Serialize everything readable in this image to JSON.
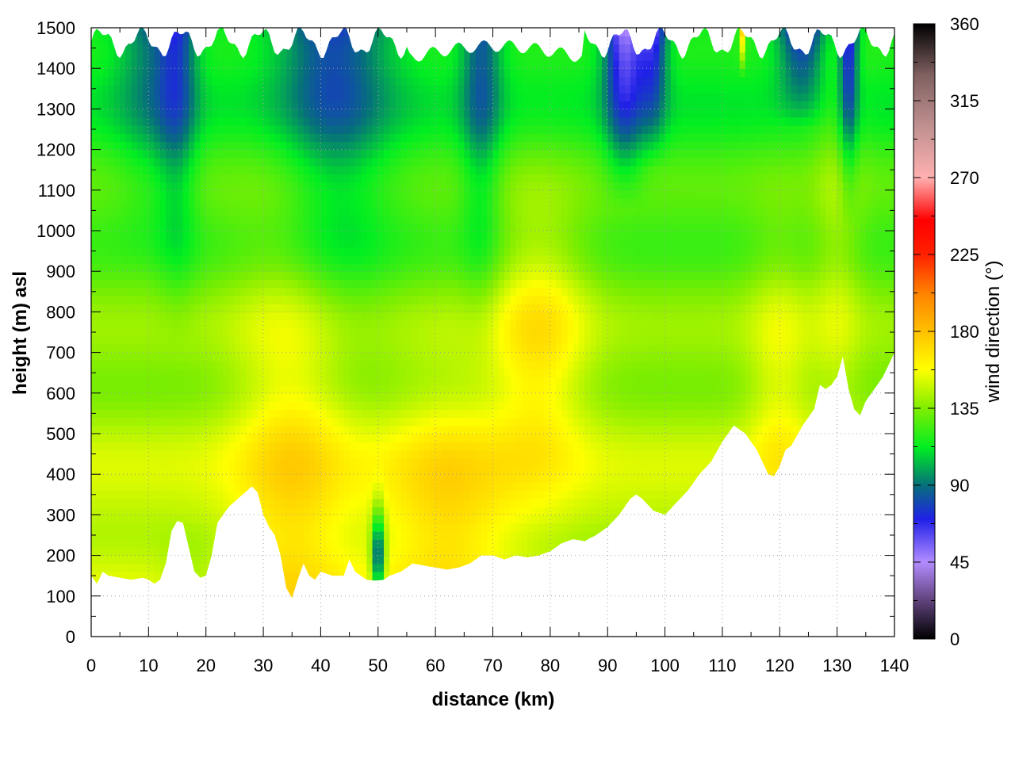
{
  "chart_data": {
    "type": "heatmap",
    "title": "",
    "xlabel": "distance (km)",
    "ylabel": "height (m) asl",
    "xlim": [
      0,
      140
    ],
    "ylim": [
      0,
      1500
    ],
    "xticks": [
      0,
      10,
      20,
      30,
      40,
      50,
      60,
      70,
      80,
      90,
      100,
      110,
      120,
      130,
      140
    ],
    "yticks": [
      0,
      100,
      200,
      300,
      400,
      500,
      600,
      700,
      800,
      900,
      1000,
      1100,
      1200,
      1300,
      1400,
      1500
    ],
    "grid": true,
    "colorbar": {
      "label": "wind direction (°)",
      "range": [
        0,
        360
      ],
      "ticks": [
        0,
        45,
        90,
        135,
        180,
        225,
        270,
        315,
        360
      ],
      "colors": [
        {
          "value": 0,
          "color": "#000000"
        },
        {
          "value": 25,
          "color": "#6a4a8a"
        },
        {
          "value": 45,
          "color": "#b38cff"
        },
        {
          "value": 70,
          "color": "#2020e8"
        },
        {
          "value": 90,
          "color": "#06707a"
        },
        {
          "value": 112,
          "color": "#00ee22"
        },
        {
          "value": 135,
          "color": "#80ee00"
        },
        {
          "value": 158,
          "color": "#ffff00"
        },
        {
          "value": 180,
          "color": "#ffc000"
        },
        {
          "value": 203,
          "color": "#ff8000"
        },
        {
          "value": 225,
          "color": "#ff2000"
        },
        {
          "value": 245,
          "color": "#ff0000"
        },
        {
          "value": 270,
          "color": "#ffb0b0"
        },
        {
          "value": 300,
          "color": "#c09090"
        },
        {
          "value": 330,
          "color": "#806060"
        },
        {
          "value": 360,
          "color": "#000000"
        }
      ]
    },
    "terrain_profile": {
      "distance": [
        0,
        1,
        2,
        3,
        5,
        7,
        9,
        10,
        11,
        12,
        13,
        14,
        15,
        16,
        17,
        18,
        19,
        20,
        21,
        22,
        24,
        26,
        28,
        29,
        30,
        31,
        32,
        33,
        34,
        35,
        36,
        37,
        38,
        39,
        40,
        42,
        44,
        45,
        46,
        47,
        48,
        49,
        50,
        51,
        52,
        54,
        56,
        58,
        60,
        62,
        64,
        66,
        68,
        70,
        72,
        74,
        76,
        78,
        80,
        82,
        84,
        86,
        88,
        90,
        92,
        94,
        95,
        96,
        98,
        100,
        102,
        104,
        106,
        108,
        110,
        112,
        114,
        116,
        117,
        118,
        119,
        120,
        121,
        122,
        124,
        126,
        127,
        128,
        129,
        130,
        131,
        132,
        133,
        134,
        135,
        136,
        138,
        140
      ],
      "height": [
        150,
        130,
        160,
        150,
        145,
        140,
        145,
        140,
        130,
        140,
        180,
        260,
        285,
        280,
        220,
        160,
        145,
        150,
        200,
        280,
        320,
        345,
        370,
        355,
        300,
        270,
        250,
        200,
        120,
        95,
        140,
        180,
        150,
        140,
        160,
        150,
        150,
        190,
        160,
        150,
        140,
        138,
        138,
        140,
        150,
        160,
        180,
        175,
        170,
        165,
        170,
        180,
        200,
        200,
        190,
        200,
        195,
        200,
        210,
        230,
        240,
        235,
        250,
        270,
        300,
        340,
        350,
        340,
        310,
        300,
        330,
        360,
        400,
        430,
        480,
        520,
        500,
        460,
        430,
        400,
        395,
        420,
        460,
        470,
        520,
        560,
        620,
        610,
        620,
        640,
        690,
        610,
        560,
        545,
        580,
        600,
        640,
        700
      ]
    },
    "annotations": []
  }
}
